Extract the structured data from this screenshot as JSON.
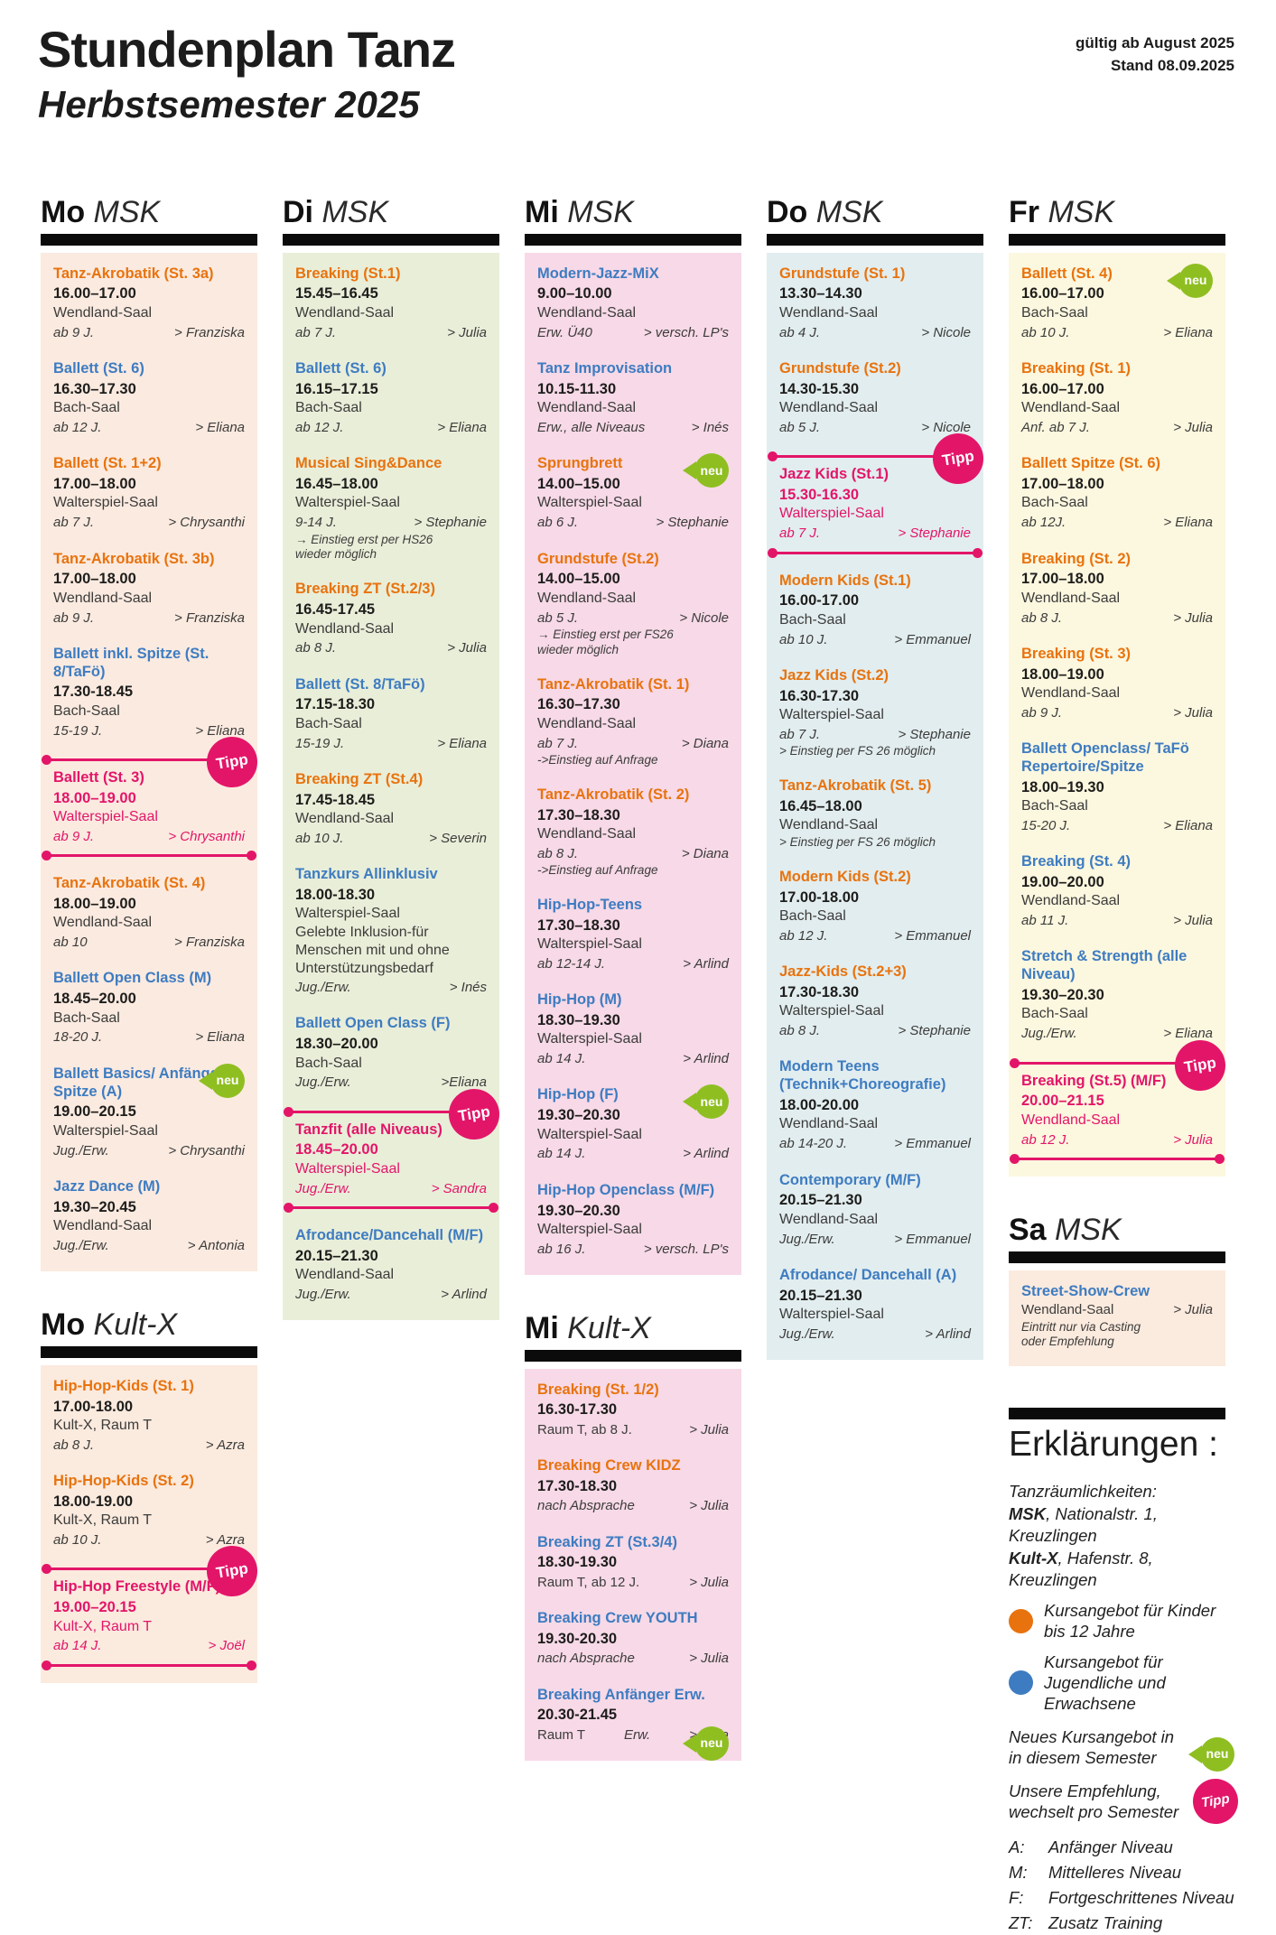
{
  "header": {
    "title": "Stundenplan Tanz",
    "subtitle": "Herbstsemester 2025",
    "valid_from": "gültig ab August 2025",
    "stand": "Stand 08.09.2025"
  },
  "badges": {
    "neu": "neu",
    "tipp": "Tipp"
  },
  "colors": {
    "orange": "#e8730e",
    "blue": "#3e7cc1",
    "pink": "#e31569",
    "green": "#8fbe21",
    "bg_mo_msk": "#fbeae0",
    "bg_di_msk": "#e9eed9",
    "bg_mi_msk": "#f7d9e7",
    "bg_do_msk": "#e2edef",
    "bg_fr_msk": "#fcf7df",
    "bg_sa_msk": "#fbeade",
    "bg_mo_kultx": "#fbeade",
    "bg_mi_kultx": "#f7d9e7"
  },
  "columns": [
    {
      "sections": [
        {
          "day": "Mo",
          "location": "MSK",
          "bg": "#fbeae0",
          "courses": [
            {
              "title": "Tanz-Akrobatik (St. 3a)",
              "color": "orange",
              "time": "16.00–17.00",
              "room": "Wendland-Saal",
              "age": "ab 9 J.",
              "teacher": "> Franziska"
            },
            {
              "title": "Ballett (St. 6)",
              "color": "blue",
              "time": "16.30–17.30",
              "room": "Bach-Saal",
              "age": "ab 12 J.",
              "teacher": "> Eliana"
            },
            {
              "title": "Ballett (St. 1+2)",
              "color": "orange",
              "time": "17.00–18.00",
              "room": "Walterspiel-Saal",
              "age": "ab 7 J.",
              "teacher": "> Chrysanthi"
            },
            {
              "title": "Tanz-Akrobatik (St. 3b)",
              "color": "orange",
              "time": "17.00–18.00",
              "room": "Wendland-Saal",
              "age": "ab 9 J.",
              "teacher": "> Franziska"
            },
            {
              "title": "Ballett inkl. Spitze (St. 8/TaFö)",
              "color": "blue",
              "time": "17.30-18.45",
              "room": "Bach-Saal",
              "age": "15-19 J.",
              "teacher": "> Eliana"
            },
            {
              "title": "Ballett (St. 3)",
              "color": "pink",
              "tipp": true,
              "time": "18.00–19.00",
              "room": "Walterspiel-Saal",
              "age": "ab 9 J.",
              "teacher": "> Chrysanthi"
            },
            {
              "title": "Tanz-Akrobatik (St. 4)",
              "color": "orange",
              "time": "18.00–19.00",
              "room": "Wendland-Saal",
              "age": "ab 10",
              "teacher": "> Franziska"
            },
            {
              "title": "Ballett Open Class (M)",
              "color": "blue",
              "time": "18.45–20.00",
              "room": "Bach-Saal",
              "age": "18-20 J.",
              "teacher": "> Eliana"
            },
            {
              "title": "Ballett Basics/ Anfänger Spitze (A)",
              "color": "blue",
              "badge": "neu",
              "time": "19.00–20.15",
              "room": "Walterspiel-Saal",
              "age": "Jug./Erw.",
              "teacher": "> Chrysanthi"
            },
            {
              "title": "Jazz Dance (M)",
              "color": "blue",
              "time": "19.30–20.45",
              "room": "Wendland-Saal",
              "age": "Jug./Erw.",
              "teacher": "> Antonia"
            }
          ]
        },
        {
          "day": "Mo",
          "location": "Kult-X",
          "bg": "#fbeade",
          "courses": [
            {
              "title": "Hip-Hop-Kids (St. 1)",
              "color": "orange",
              "time": "17.00-18.00",
              "room": "Kult-X, Raum T",
              "age": "ab 8 J.",
              "teacher": "> Azra"
            },
            {
              "title": "Hip-Hop-Kids (St. 2)",
              "color": "orange",
              "time": "18.00-19.00",
              "room": "Kult-X, Raum T",
              "age": "ab 10 J.",
              "teacher": "> Azra"
            },
            {
              "title": "Hip-Hop Freestyle (M/F)",
              "color": "pink",
              "tipp": true,
              "time": "19.00–20.15",
              "room": "Kult-X, Raum T",
              "age": "ab 14 J.",
              "teacher": "> Joël"
            }
          ]
        }
      ]
    },
    {
      "sections": [
        {
          "day": "Di",
          "location": "MSK",
          "bg": "#e9eed9",
          "courses": [
            {
              "title": "Breaking (St.1)",
              "color": "orange",
              "time": "15.45–16.45",
              "room": "Wendland-Saal",
              "age": "ab 7 J.",
              "teacher": "> Julia"
            },
            {
              "title": "Ballett (St. 6)",
              "color": "blue",
              "time": "16.15–17.15",
              "room": "Bach-Saal",
              "age": "ab 12 J.",
              "teacher": "> Eliana"
            },
            {
              "title": "Musical Sing&Dance",
              "color": "orange",
              "time": "16.45–18.00",
              "room": "Walterspiel-Saal",
              "age": "9-14 J.",
              "teacher": "> Stephanie",
              "note": [
                "→ Einstieg erst per HS26",
                "wieder möglich"
              ]
            },
            {
              "title": "Breaking ZT (St.2/3)",
              "color": "orange",
              "time": "16.45-17.45",
              "room": "Wendland-Saal",
              "age": "ab 8 J.",
              "teacher": "> Julia"
            },
            {
              "title": "Ballett (St. 8/TaFö)",
              "color": "blue",
              "time": "17.15-18.30",
              "room": "Bach-Saal",
              "age": "15-19 J.",
              "teacher": "> Eliana"
            },
            {
              "title": "Breaking ZT (St.4)",
              "color": "orange",
              "time": "17.45-18.45",
              "room": "Wendland-Saal",
              "age": "ab 10 J.",
              "teacher": "> Severin"
            },
            {
              "title": "Tanzkurs Allinklusiv",
              "color": "blue",
              "time": "18.00-18.30",
              "room": "Walterspiel-Saal",
              "desc": [
                "Gelebte Inklusion-für",
                "Menschen mit und ohne",
                "Unterstützungsbedarf"
              ],
              "age": "Jug./Erw.",
              "teacher": "> Inés"
            },
            {
              "title": "Ballett Open Class (F)",
              "color": "blue",
              "time": "18.30–20.00",
              "room": "Bach-Saal",
              "age": "Jug./Erw.",
              "teacher": ">Eliana"
            },
            {
              "title": "Tanzfit (alle Niveaus)",
              "color": "pink",
              "tipp": true,
              "time": "18.45–20.00",
              "room": "Walterspiel-Saal",
              "age": "Jug./Erw.",
              "teacher": "> Sandra"
            },
            {
              "title": "Afrodance/Dancehall (M/F)",
              "color": "blue",
              "time": "20.15–21.30",
              "room": "Wendland-Saal",
              "age": "Jug./Erw.",
              "teacher": "> Arlind"
            }
          ]
        }
      ]
    },
    {
      "sections": [
        {
          "day": "Mi",
          "location": "MSK",
          "bg": "#f7d9e7",
          "courses": [
            {
              "title": "Modern-Jazz-MiX",
              "color": "blue",
              "time": "9.00–10.00",
              "room": "Wendland-Saal",
              "age": "Erw. Ü40",
              "teacher": "> versch. LP's"
            },
            {
              "title": "Tanz Improvisation",
              "color": "blue",
              "time": "10.15-11.30",
              "room": "Wendland-Saal",
              "age": "Erw., alle Niveaus",
              "teacher": "> Inés"
            },
            {
              "title": "Sprungbrett",
              "color": "orange",
              "badge": "neu",
              "time": "14.00–15.00",
              "room": "Walterspiel-Saal",
              "age": "ab 6 J.",
              "teacher": "> Stephanie"
            },
            {
              "title": "Grundstufe (St.2)",
              "color": "orange",
              "time": "14.00–15.00",
              "room": "Wendland-Saal",
              "age": "ab 5 J.",
              "teacher": "> Nicole",
              "note": [
                "→ Einstieg erst per FS26",
                "wieder möglich"
              ]
            },
            {
              "title": "Tanz-Akrobatik (St. 1)",
              "color": "orange",
              "time": "16.30–17.30",
              "room": "Wendland-Saal",
              "age": "ab 7 J.",
              "teacher": "> Diana",
              "note": [
                "->Einstieg auf Anfrage"
              ]
            },
            {
              "title": "Tanz-Akrobatik (St. 2)",
              "color": "orange",
              "time": "17.30–18.30",
              "room": "Wendland-Saal",
              "age": "ab 8 J.",
              "teacher": "> Diana",
              "note": [
                "->Einstieg auf Anfrage"
              ]
            },
            {
              "title": "Hip-Hop-Teens",
              "color": "blue",
              "time": "17.30–18.30",
              "room": "Walterspiel-Saal",
              "age": "ab 12-14 J.",
              "teacher": "> Arlind"
            },
            {
              "title": "Hip-Hop (M)",
              "color": "blue",
              "time": "18.30–19.30",
              "room": "Walterspiel-Saal",
              "age": "ab 14 J.",
              "teacher": "> Arlind"
            },
            {
              "title": "Hip-Hop (F)",
              "color": "blue",
              "badge": "neu",
              "time": "19.30–20.30",
              "room": "Walterspiel-Saal",
              "age": "ab 14 J.",
              "teacher": "> Arlind"
            },
            {
              "title": "Hip-Hop Openclass (M/F)",
              "color": "blue",
              "time": "19.30–20.30",
              "room": "Walterspiel-Saal",
              "age": "ab 16 J.",
              "teacher": "> versch. LP's"
            }
          ]
        },
        {
          "day": "Mi",
          "location": "Kult-X",
          "bg": "#f7d9e7",
          "courses": [
            {
              "title": "Breaking (St. 1/2)",
              "color": "orange",
              "time": "16.30-17.30",
              "room_inline": "Raum T, ab 8 J.",
              "teacher": "> Julia"
            },
            {
              "title": "Breaking Crew KIDZ",
              "color": "orange",
              "time": "17.30-18.30",
              "age": "nach Absprache",
              "teacher": "> Julia"
            },
            {
              "title": "Breaking ZT (St.3/4)",
              "color": "blue",
              "time": "18.30-19.30",
              "room_inline": "Raum T, ab 12 J.",
              "teacher": "> Julia"
            },
            {
              "title": "Breaking Crew YOUTH",
              "color": "blue",
              "time": "19.30-20.30",
              "age": "nach Absprache",
              "teacher": "> Julia"
            },
            {
              "title": "Breaking Anfänger Erw.",
              "color": "blue",
              "badge": "neu",
              "badge_pos": "low",
              "time": "20.30-21.45",
              "room_inline": "Raum T",
              "age": "Erw.",
              "teacher": "> Julia"
            }
          ]
        }
      ]
    },
    {
      "sections": [
        {
          "day": "Do",
          "location": "MSK",
          "bg": "#e2edef",
          "courses": [
            {
              "title": "Grundstufe (St. 1)",
              "color": "orange",
              "time": "13.30–14.30",
              "room": "Wendland-Saal",
              "age": "ab 4 J.",
              "teacher": "> Nicole"
            },
            {
              "title": "Grundstufe (St.2)",
              "color": "orange",
              "time": "14.30-15.30",
              "room": "Wendland-Saal",
              "age": "ab 5 J.",
              "teacher": "> Nicole"
            },
            {
              "title": "Jazz Kids (St.1)",
              "color": "pink",
              "tipp": true,
              "time": "15.30-16.30",
              "room": "Walterspiel-Saal",
              "age": "ab 7 J.",
              "teacher": "> Stephanie"
            },
            {
              "title": "Modern Kids (St.1)",
              "color": "orange",
              "time": "16.00-17.00",
              "room": "Bach-Saal",
              "age": "ab 10 J.",
              "teacher": "> Emmanuel"
            },
            {
              "title": "Jazz Kids (St.2)",
              "color": "orange",
              "time": "16.30-17.30",
              "room": "Walterspiel-Saal",
              "age": "ab 7 J.",
              "teacher": "> Stephanie",
              "note": [
                "> Einstieg per FS 26 möglich"
              ]
            },
            {
              "title": "Tanz-Akrobatik (St. 5)",
              "color": "orange",
              "time": "16.45–18.00",
              "room": "Wendland-Saal",
              "note": [
                "> Einstieg per FS 26 möglich"
              ]
            },
            {
              "title": "Modern Kids (St.2)",
              "color": "orange",
              "time": "17.00-18.00",
              "room": "Bach-Saal",
              "age": "ab 12 J.",
              "teacher": "> Emmanuel"
            },
            {
              "title": "Jazz-Kids (St.2+3)",
              "color": "orange",
              "time": "17.30-18.30",
              "room": "Walterspiel-Saal",
              "age": "ab 8 J.",
              "teacher": "> Stephanie"
            },
            {
              "title": "Modern Teens (Technik+Choreografie)",
              "color": "blue",
              "time": "18.00-20.00",
              "room": "Wendland-Saal",
              "age": "ab 14-20 J.",
              "teacher": "> Emmanuel"
            },
            {
              "title": "Contemporary (M/F)",
              "color": "blue",
              "time": "20.15–21.30",
              "room": "Wendland-Saal",
              "age": "Jug./Erw.",
              "teacher": "> Emmanuel"
            },
            {
              "title": "Afrodance/ Dancehall (A)",
              "color": "blue",
              "time": "20.15–21.30",
              "room": "Walterspiel-Saal",
              "age": "Jug./Erw.",
              "teacher": "> Arlind"
            }
          ]
        }
      ]
    },
    {
      "sections": [
        {
          "day": "Fr",
          "location": "MSK",
          "bg": "#fcf7df",
          "courses": [
            {
              "title": "Ballett (St. 4)",
              "color": "orange",
              "badge": "neu",
              "time": "16.00–17.00",
              "room": "Bach-Saal",
              "age": "ab 10 J.",
              "teacher": "> Eliana"
            },
            {
              "title": "Breaking (St. 1)",
              "color": "orange",
              "time": "16.00–17.00",
              "room": "Wendland-Saal",
              "age": "Anf. ab 7 J.",
              "teacher": "> Julia"
            },
            {
              "title": "Ballett Spitze (St. 6)",
              "color": "orange",
              "time": "17.00–18.00",
              "room": "Bach-Saal",
              "age": "ab 12J.",
              "teacher": "> Eliana"
            },
            {
              "title": "Breaking (St. 2)",
              "color": "orange",
              "time": "17.00–18.00",
              "room": "Wendland-Saal",
              "age": "ab 8 J.",
              "teacher": "> Julia"
            },
            {
              "title": "Breaking (St. 3)",
              "color": "orange",
              "time": "18.00–19.00",
              "room": "Wendland-Saal",
              "age": "ab 9 J.",
              "teacher": "> Julia"
            },
            {
              "title": "Ballett Openclass/ TaFö Repertoire/Spitze",
              "color": "blue",
              "time": "18.00–19.30",
              "room": "Bach-Saal",
              "age": "15-20 J.",
              "teacher": "> Eliana"
            },
            {
              "title": "Breaking (St. 4)",
              "color": "blue",
              "time": "19.00–20.00",
              "room": "Wendland-Saal",
              "age": "ab 11 J.",
              "teacher": "> Julia"
            },
            {
              "title": "Stretch & Strength (alle Niveau)",
              "color": "blue",
              "time": "19.30–20.30",
              "room": "Bach-Saal",
              "age": "Jug./Erw.",
              "teacher": "> Eliana"
            },
            {
              "title": "Breaking (St.5) (M/F)",
              "color": "pink",
              "tipp": true,
              "time": "20.00–21.15",
              "room": "Wendland-Saal",
              "age": "ab 12 J.",
              "teacher": "> Julia"
            }
          ]
        },
        {
          "day": "Sa",
          "location": "MSK",
          "bg": "#fbeade",
          "courses": [
            {
              "title": "Street-Show-Crew",
              "color": "blue",
              "room_inline": "Wendland-Saal",
              "teacher": "> Julia",
              "note": [
                "Eintritt nur via Casting",
                "oder Empfehlung"
              ]
            }
          ]
        }
      ]
    }
  ],
  "legend": {
    "title": "Erklärungen :",
    "rooms_label": "Tanzräumlichkeiten:",
    "rooms": [
      {
        "name": "MSK",
        "rest": ", Nationalstr. 1, Kreuzlingen"
      },
      {
        "name": "Kult-X",
        "rest": ", Hafenstr. 8, Kreuzlingen"
      }
    ],
    "dot_orange_text": "Kursangebot für Kinder bis 12 Jahre",
    "dot_blue_text": "Kursangebot für Jugendliche und Erwachsene",
    "neu_text": "Neues Kursangebot in in diesem Semester",
    "tipp_text": "Unsere Empfehlung, wechselt pro Semester",
    "levels": [
      {
        "key": "A:",
        "label": "Anfänger Niveau"
      },
      {
        "key": "M:",
        "label": "Mittelleres Niveau"
      },
      {
        "key": "F:",
        "label": "Fortgeschrittenes Niveau"
      },
      {
        "key": "ZT:",
        "label": "Zusatz Training"
      }
    ]
  }
}
